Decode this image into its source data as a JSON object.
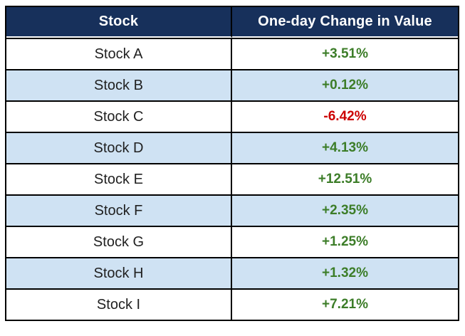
{
  "table": {
    "columns": [
      {
        "label": "Stock"
      },
      {
        "label": "One-day Change in Value"
      }
    ],
    "rows": [
      {
        "stock": "Stock A",
        "change": "+3.51%",
        "direction": "up"
      },
      {
        "stock": "Stock B",
        "change": "+0.12%",
        "direction": "up"
      },
      {
        "stock": "Stock C",
        "change": "-6.42%",
        "direction": "down"
      },
      {
        "stock": "Stock D",
        "change": "+4.13%",
        "direction": "up"
      },
      {
        "stock": "Stock E",
        "change": "+12.51%",
        "direction": "up"
      },
      {
        "stock": "Stock F",
        "change": "+2.35%",
        "direction": "up"
      },
      {
        "stock": "Stock G",
        "change": "+1.25%",
        "direction": "up"
      },
      {
        "stock": "Stock H",
        "change": "+1.32%",
        "direction": "up"
      },
      {
        "stock": "Stock I",
        "change": "+7.21%",
        "direction": "up"
      }
    ]
  },
  "colors": {
    "header_bg": "#17305b",
    "header_text": "#ffffff",
    "row_alt_bg": "#cfe2f3",
    "row_bg": "#ffffff",
    "positive": "#3c7d28",
    "negative": "#cc0000",
    "border": "#000000",
    "stock_text": "#212121"
  },
  "chart_data": {
    "type": "table",
    "title": "",
    "columns": [
      "Stock",
      "One-day Change in Value"
    ],
    "categories": [
      "Stock A",
      "Stock B",
      "Stock C",
      "Stock D",
      "Stock E",
      "Stock F",
      "Stock G",
      "Stock H",
      "Stock I"
    ],
    "values": [
      3.51,
      0.12,
      -6.42,
      4.13,
      12.51,
      2.35,
      1.25,
      1.32,
      7.21
    ],
    "value_unit": "percent",
    "rows": [
      [
        "Stock A",
        "+3.51%"
      ],
      [
        "Stock B",
        "+0.12%"
      ],
      [
        "Stock C",
        "-6.42%"
      ],
      [
        "Stock D",
        "+4.13%"
      ],
      [
        "Stock E",
        "+12.51%"
      ],
      [
        "Stock F",
        "+2.35%"
      ],
      [
        "Stock G",
        "+1.25%"
      ],
      [
        "Stock H",
        "+1.32%"
      ],
      [
        "Stock I",
        "+7.21%"
      ]
    ]
  }
}
